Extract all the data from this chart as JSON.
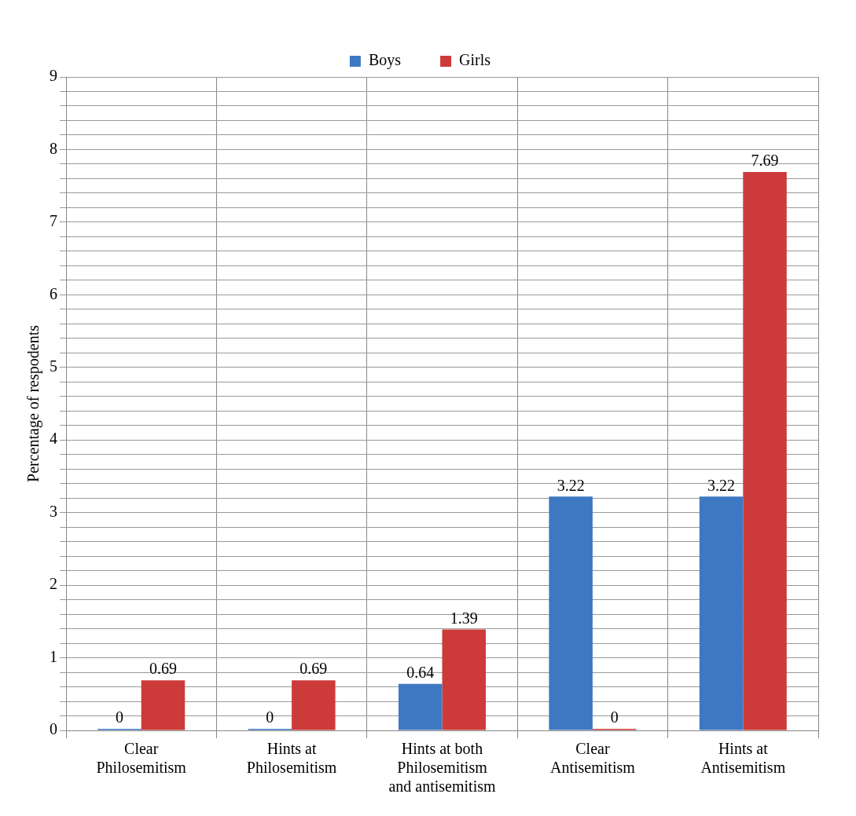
{
  "chart_data": {
    "type": "bar",
    "ylabel": "Percentage of respodents",
    "categories": [
      "Clear Philosemitism",
      "Hints at Philosemitism",
      "Hints at both Philosemitism and antisemitism",
      "Clear Antisemitism",
      "Hints at Antisemitism"
    ],
    "series": [
      {
        "name": "Boys",
        "color": "#3f78c2",
        "values": [
          0,
          0,
          0.64,
          3.22,
          3.22
        ]
      },
      {
        "name": "Girls",
        "color": "#cc3b3a",
        "values": [
          0.69,
          0.69,
          1.39,
          0,
          7.69
        ]
      }
    ],
    "ylim": [
      0,
      9
    ],
    "yticks": [
      0,
      {
        "value": 0.2,
        "label": null
      },
      {
        "value": 0.4,
        "label": null
      },
      {
        "value": 0.6,
        "label": null
      },
      {
        "value": 0.8,
        "label": null
      },
      1,
      {
        "value": 1.2,
        "label": null
      },
      {
        "value": 1.4,
        "label": null
      },
      {
        "value": 1.6,
        "label": null
      },
      {
        "value": 1.8,
        "label": null
      },
      2,
      {
        "value": 2.2,
        "label": null
      },
      {
        "value": 2.4,
        "label": null
      },
      {
        "value": 2.6,
        "label": null
      },
      {
        "value": 2.8,
        "label": null
      },
      3,
      {
        "value": 3.2,
        "label": null
      },
      {
        "value": 3.4,
        "label": null
      },
      {
        "value": 3.6,
        "label": null
      },
      {
        "value": 3.8,
        "label": null
      },
      4,
      {
        "value": 4.2,
        "label": null
      },
      {
        "value": 4.4,
        "label": null
      },
      {
        "value": 4.6,
        "label": null
      },
      {
        "value": 4.8,
        "label": null
      },
      5,
      {
        "value": 5.2,
        "label": null
      },
      {
        "value": 5.4,
        "label": null
      },
      {
        "value": 5.6,
        "label": null
      },
      {
        "value": 5.8,
        "label": null
      },
      6,
      {
        "value": 6.2,
        "label": null
      },
      {
        "value": 6.4,
        "label": null
      },
      {
        "value": 6.6,
        "label": null
      },
      {
        "value": 6.8,
        "label": null
      },
      7,
      {
        "value": 7.2,
        "label": null
      },
      {
        "value": 7.4,
        "label": null
      },
      {
        "value": 7.6,
        "label": null
      },
      {
        "value": 7.8,
        "label": null
      },
      8,
      {
        "value": 8.2,
        "label": null
      },
      {
        "value": 8.4,
        "label": null
      },
      {
        "value": 8.6,
        "label": null
      },
      {
        "value": 8.8,
        "label": null
      },
      9
    ],
    "grid": true,
    "legend": "top",
    "data_labels": true
  }
}
